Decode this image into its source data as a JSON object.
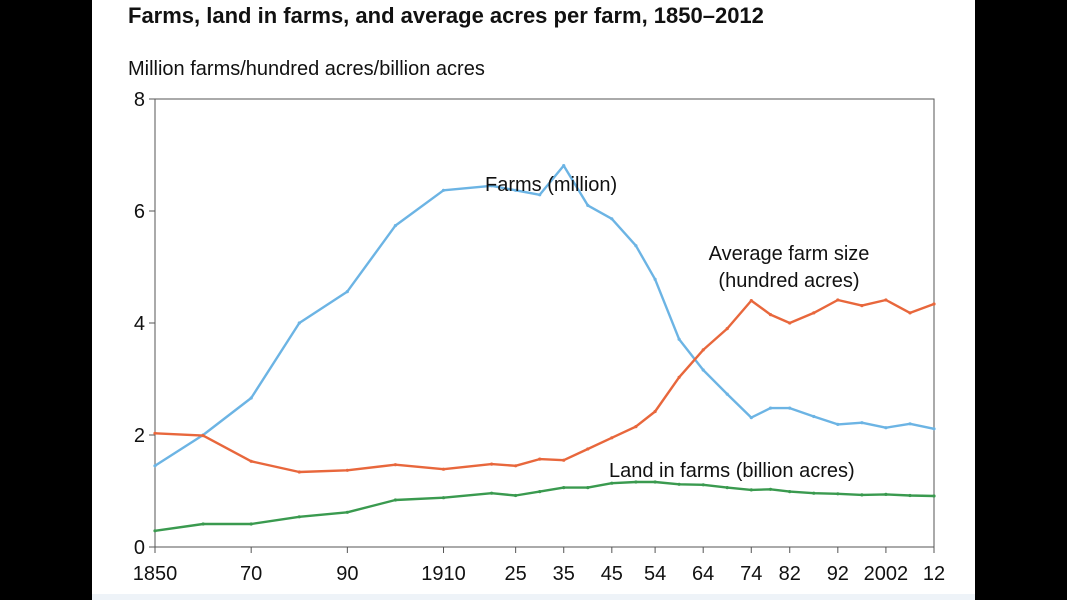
{
  "chart_data": {
    "type": "line",
    "title": "Farms, land in farms, and average acres per farm, 1850–2012",
    "ylabel": "Million farms/hundred acres/billion acres",
    "xlabel": "",
    "ylim": [
      0,
      8
    ],
    "xlim": [
      1850,
      2012
    ],
    "y_ticks": [
      {
        "value": 0,
        "label": "0"
      },
      {
        "value": 2,
        "label": "2"
      },
      {
        "value": 4,
        "label": "4"
      },
      {
        "value": 6,
        "label": "6"
      },
      {
        "value": 8,
        "label": "8"
      }
    ],
    "x_ticks": [
      {
        "value": 1850,
        "label": "1850"
      },
      {
        "value": 1870,
        "label": "70"
      },
      {
        "value": 1890,
        "label": "90"
      },
      {
        "value": 1910,
        "label": "1910"
      },
      {
        "value": 1925,
        "label": "25"
      },
      {
        "value": 1935,
        "label": "35"
      },
      {
        "value": 1945,
        "label": "45"
      },
      {
        "value": 1954,
        "label": "54"
      },
      {
        "value": 1964,
        "label": "64"
      },
      {
        "value": 1974,
        "label": "74"
      },
      {
        "value": 1982,
        "label": "82"
      },
      {
        "value": 1992,
        "label": "92"
      },
      {
        "value": 2002,
        "label": "2002"
      },
      {
        "value": 2012,
        "label": "12"
      }
    ],
    "series": [
      {
        "name": "Farms (million)",
        "label_lines": [
          "Farms (million)"
        ],
        "color": "#6cb4e4",
        "x": [
          1850,
          1860,
          1870,
          1880,
          1890,
          1900,
          1910,
          1920,
          1925,
          1930,
          1935,
          1940,
          1945,
          1950,
          1954,
          1959,
          1964,
          1969,
          1974,
          1978,
          1982,
          1987,
          1992,
          1997,
          2002,
          2007,
          2012
        ],
        "values": [
          1.45,
          2.0,
          2.66,
          4.0,
          4.56,
          5.74,
          6.37,
          6.45,
          6.37,
          6.29,
          6.81,
          6.1,
          5.86,
          5.38,
          4.78,
          3.71,
          3.16,
          2.73,
          2.31,
          2.48,
          2.48,
          2.33,
          2.19,
          2.22,
          2.13,
          2.2,
          2.11
        ]
      },
      {
        "name": "Average farm size (hundred acres)",
        "label_lines": [
          "Average farm size",
          "(hundred acres)"
        ],
        "color": "#e8673c",
        "x": [
          1850,
          1860,
          1870,
          1880,
          1890,
          1900,
          1910,
          1920,
          1925,
          1930,
          1935,
          1940,
          1945,
          1950,
          1954,
          1959,
          1964,
          1969,
          1974,
          1978,
          1982,
          1987,
          1992,
          1997,
          2002,
          2007,
          2012
        ],
        "values": [
          2.03,
          1.99,
          1.53,
          1.34,
          1.37,
          1.47,
          1.39,
          1.48,
          1.45,
          1.57,
          1.55,
          1.75,
          1.95,
          2.15,
          2.42,
          3.03,
          3.52,
          3.9,
          4.4,
          4.15,
          4.0,
          4.18,
          4.41,
          4.31,
          4.41,
          4.18,
          4.34
        ]
      },
      {
        "name": "Land in farms (billion acres)",
        "label_lines": [
          "Land in farms (billion acres)"
        ],
        "color": "#3a9a4f",
        "x": [
          1850,
          1860,
          1870,
          1880,
          1890,
          1900,
          1910,
          1920,
          1925,
          1930,
          1935,
          1940,
          1945,
          1950,
          1954,
          1959,
          1964,
          1969,
          1974,
          1978,
          1982,
          1987,
          1992,
          1997,
          2002,
          2007,
          2012
        ],
        "values": [
          0.29,
          0.41,
          0.41,
          0.54,
          0.62,
          0.84,
          0.88,
          0.96,
          0.92,
          0.99,
          1.06,
          1.06,
          1.14,
          1.16,
          1.16,
          1.12,
          1.11,
          1.06,
          1.02,
          1.03,
          0.99,
          0.96,
          0.95,
          0.93,
          0.94,
          0.92,
          0.91
        ]
      }
    ],
    "grid": false,
    "legend": "inline labels"
  }
}
